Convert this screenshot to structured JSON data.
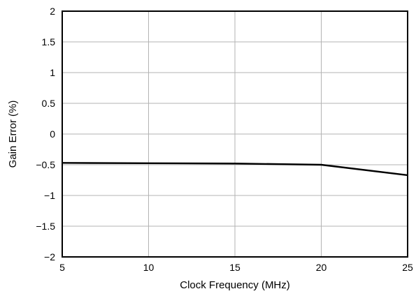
{
  "chart_data": {
    "type": "line",
    "title": "",
    "xlabel": "Clock Frequency (MHz)",
    "ylabel": "Gain Error (%)",
    "xlim": [
      5,
      25
    ],
    "ylim": [
      -2,
      2
    ],
    "x_ticks": [
      5,
      10,
      15,
      20,
      25
    ],
    "y_ticks": [
      -2,
      -1.5,
      -1,
      -0.5,
      0,
      0.5,
      1,
      1.5,
      2
    ],
    "x_tick_labels": [
      "5",
      "10",
      "15",
      "20",
      "25"
    ],
    "y_tick_labels": [
      "−2",
      "−1.5",
      "−1",
      "−0.5",
      "0",
      "0.5",
      "1",
      "1.5",
      "2"
    ],
    "grid": true,
    "series": [
      {
        "x": [
          5,
          10,
          15,
          20,
          25
        ],
        "y": [
          -0.47,
          -0.475,
          -0.48,
          -0.5,
          -0.67
        ],
        "color": "#000000"
      }
    ]
  }
}
